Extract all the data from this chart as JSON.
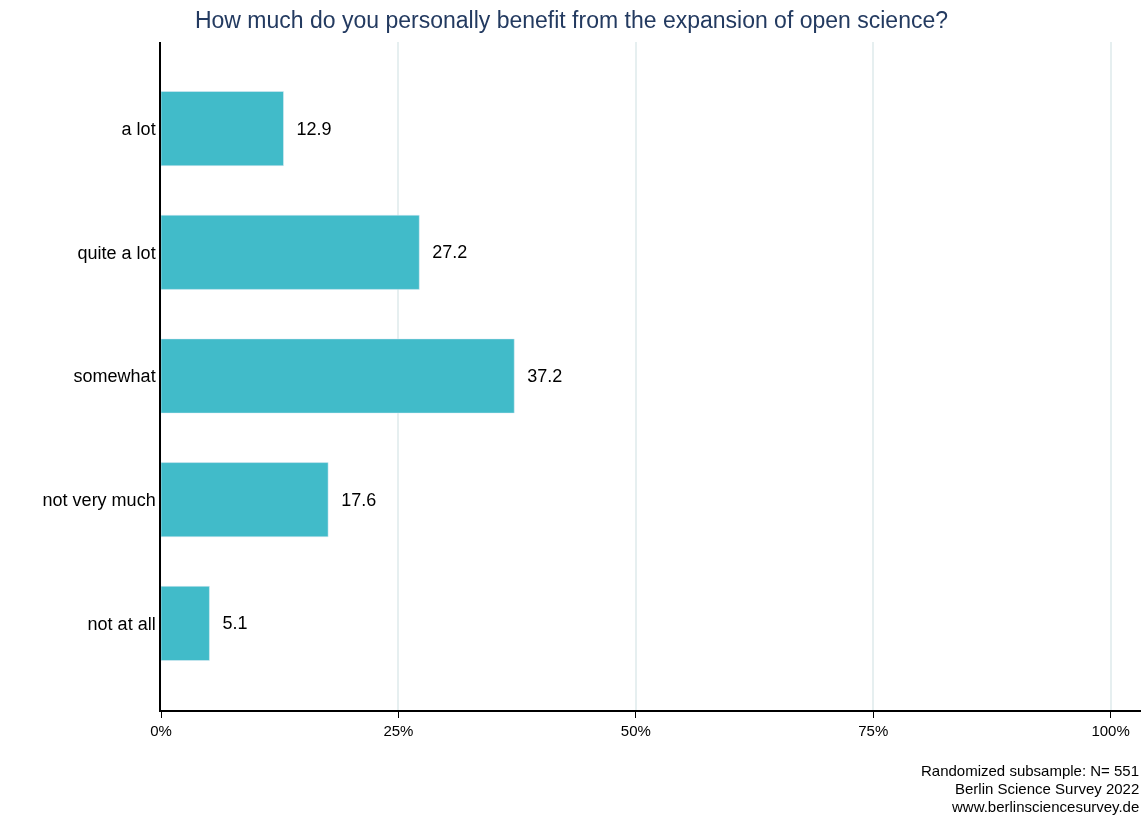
{
  "chart_data": {
    "type": "bar",
    "orientation": "horizontal",
    "title": "How much do you personally benefit from the expansion of open science?",
    "categories": [
      "a lot",
      "quite a lot",
      "somewhat",
      "not very much",
      "not at all"
    ],
    "values": [
      12.9,
      27.2,
      37.2,
      17.6,
      5.1
    ],
    "color": "#41bbc9",
    "data_labels": true,
    "xlim": [
      0,
      103.2
    ],
    "xticks": [
      {
        "value": 0,
        "label": "0%"
      },
      {
        "value": 25,
        "label": "25%"
      },
      {
        "value": 50,
        "label": "50%"
      },
      {
        "value": 75,
        "label": "75%"
      },
      {
        "value": 100,
        "label": "100%"
      }
    ],
    "grid": "x",
    "annotations": [
      "Randomized subsample: N= 551",
      "Berlin Science Survey 2022",
      "www.berlinsciencesurvey.de"
    ]
  }
}
